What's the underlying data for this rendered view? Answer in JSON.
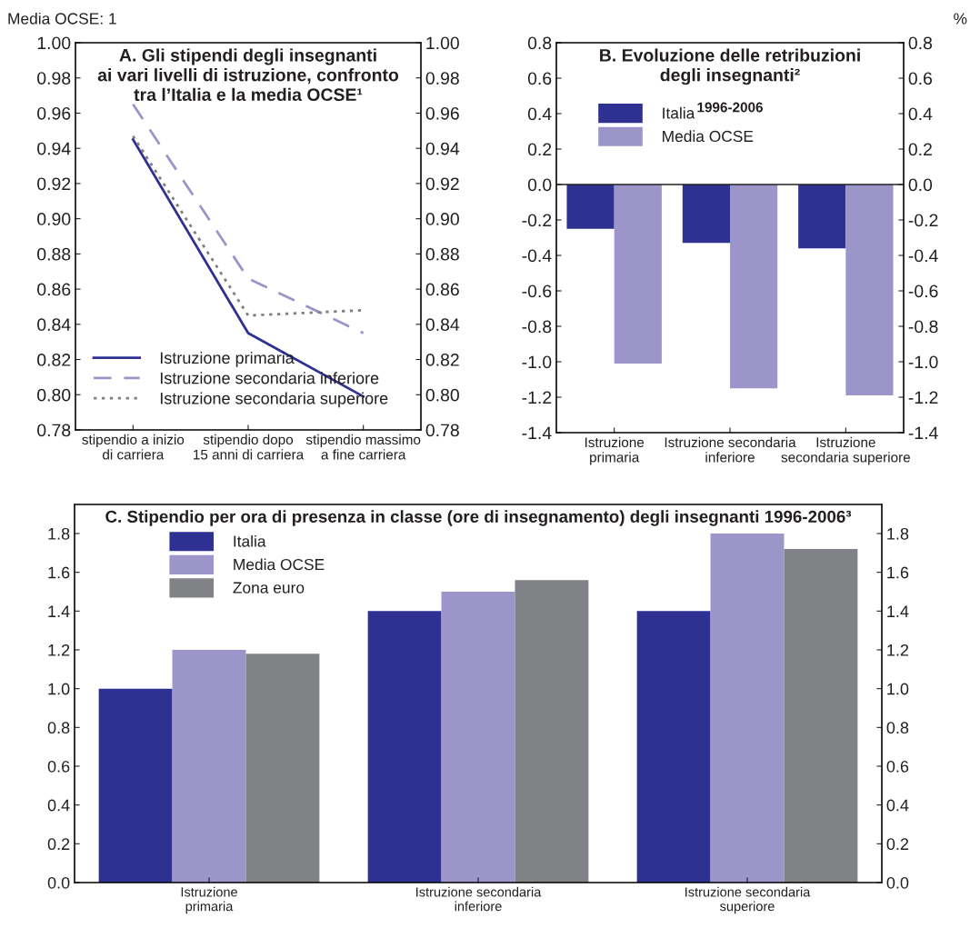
{
  "chart_data": [
    {
      "type": "line",
      "title": "A. Gli stipendi degli insegnanti\nai vari livelli di istruzione, confronto\ntra l’Italia e la media OCSE¹",
      "categories": [
        "stipendio a inizio\ndi carriera",
        "stipendio dopo\n15 anni di carriera",
        "stipendio massimo\na fine carriera"
      ],
      "series": [
        {
          "name": "Istruzione primaria",
          "color": "#2e3192",
          "line_style": "solid",
          "values": [
            0.945,
            0.835,
            0.799
          ]
        },
        {
          "name": "Istruzione secondaria inferiore",
          "color": "#9b95c9",
          "line_style": "dashed",
          "values": [
            0.965,
            0.866,
            0.835
          ]
        },
        {
          "name": "Istruzione secondaria superiore",
          "color": "#808080",
          "line_style": "dotted",
          "values": [
            0.947,
            0.845,
            0.848
          ]
        }
      ],
      "ylim": [
        0.78,
        1.0
      ],
      "yticks": [
        {
          "value": 0.78,
          "label": "0.78"
        },
        {
          "value": 0.8,
          "label": "0.80"
        },
        {
          "value": 0.82,
          "label": "0.82"
        },
        {
          "value": 0.84,
          "label": "0.84"
        },
        {
          "value": 0.86,
          "label": "0.86"
        },
        {
          "value": 0.88,
          "label": "0.88"
        },
        {
          "value": 0.9,
          "label": "0.90"
        },
        {
          "value": 0.92,
          "label": "0.92"
        },
        {
          "value": 0.94,
          "label": "0.94"
        },
        {
          "value": 0.96,
          "label": "0.96"
        },
        {
          "value": 0.98,
          "label": "0.98"
        },
        {
          "value": 1.0,
          "label": "1.00"
        }
      ],
      "y2lim": [
        0.78,
        1.0
      ],
      "y2ticks": [
        {
          "value": 0.78,
          "label": "0.78"
        },
        {
          "value": 0.8,
          "label": "0.80"
        },
        {
          "value": 0.82,
          "label": "0.82"
        },
        {
          "value": 0.84,
          "label": "0.84"
        },
        {
          "value": 0.86,
          "label": "0.86"
        },
        {
          "value": 0.88,
          "label": "0.88"
        },
        {
          "value": 0.9,
          "label": "0.90"
        },
        {
          "value": 0.92,
          "label": "0.92"
        },
        {
          "value": 0.94,
          "label": "0.94"
        },
        {
          "value": 0.96,
          "label": "0.96"
        },
        {
          "value": 0.98,
          "label": "0.98"
        },
        {
          "value": 1.0,
          "label": "1.00"
        }
      ],
      "legend": "bottom left",
      "grid": false,
      "marker": "none",
      "annotations": [
        "Media OCSE: 1"
      ]
    },
    {
      "type": "bar",
      "title": "B. Evoluzione delle retribuzioni\ndegli insegnanti²",
      "subtitle": "1996-2006",
      "categories": [
        "Istruzione\nprimaria",
        "Istruzione secondaria\ninferiore",
        "Istruzione\nsecondaria superiore"
      ],
      "series": [
        {
          "name": "Italia",
          "color": "#2e3192",
          "values": [
            -0.25,
            -0.33,
            -0.36
          ]
        },
        {
          "name": "Media OCSE",
          "color": "#9b95c9",
          "values": [
            -1.01,
            -1.15,
            -1.19
          ]
        }
      ],
      "ylim": [
        -1.4,
        0.8
      ],
      "yticks": [
        {
          "value": -1.4,
          "label": "-1.4"
        },
        {
          "value": -1.2,
          "label": "-1.2"
        },
        {
          "value": -1.0,
          "label": "-1.0"
        },
        {
          "value": -0.8,
          "label": "-0.8"
        },
        {
          "value": -0.6,
          "label": "-0.6"
        },
        {
          "value": -0.4,
          "label": "-0.4"
        },
        {
          "value": -0.2,
          "label": "-0.2"
        },
        {
          "value": 0,
          "label": "0.0"
        },
        {
          "value": 0.2,
          "label": "0.2"
        },
        {
          "value": 0.4,
          "label": "0.4"
        },
        {
          "value": 0.6,
          "label": "0.6"
        },
        {
          "value": 0.8,
          "label": "0.8"
        }
      ],
      "y2lim": [
        -1.4,
        0.8
      ],
      "y2ticks": [
        {
          "value": -1.4,
          "label": "-1.4"
        },
        {
          "value": -1.2,
          "label": "-1.2"
        },
        {
          "value": -1.0,
          "label": "-1.0"
        },
        {
          "value": -0.8,
          "label": "-0.8"
        },
        {
          "value": -0.6,
          "label": "-0.6"
        },
        {
          "value": -0.4,
          "label": "-0.4"
        },
        {
          "value": -0.2,
          "label": "-0.2"
        },
        {
          "value": 0,
          "label": "0.0"
        },
        {
          "value": 0.2,
          "label": "0.2"
        },
        {
          "value": 0.4,
          "label": "0.4"
        },
        {
          "value": 0.6,
          "label": "0.6"
        },
        {
          "value": 0.8,
          "label": "0.8"
        }
      ],
      "ref_lines": [
        {
          "axis": "y",
          "value": 0,
          "color": "#231f20"
        }
      ],
      "legend": "top left",
      "grid": false,
      "annotations": [
        "%"
      ]
    },
    {
      "type": "bar",
      "title": "C. Stipendio per ora di presenza in classe (ore di insegnamento) degli insegnanti 1996-2006³",
      "categories": [
        "Istruzione\nprimaria",
        "Istruzione secondaria\ninferiore",
        "Istruzione secondaria\nsuperiore"
      ],
      "series": [
        {
          "name": "Italia",
          "color": "#2e3192",
          "values": [
            1.0,
            1.4,
            1.4
          ]
        },
        {
          "name": "Media OCSE",
          "color": "#9b95c9",
          "values": [
            1.2,
            1.5,
            1.8
          ]
        },
        {
          "name": "Zona euro",
          "color": "#808285",
          "values": [
            1.18,
            1.56,
            1.72
          ]
        }
      ],
      "ylim": [
        0,
        1.95
      ],
      "yticks": [
        {
          "value": 0,
          "label": "0.0"
        },
        {
          "value": 0.2,
          "label": "0.2"
        },
        {
          "value": 0.4,
          "label": "0.4"
        },
        {
          "value": 0.6,
          "label": "0.6"
        },
        {
          "value": 0.8,
          "label": "0.8"
        },
        {
          "value": 1.0,
          "label": "1.0"
        },
        {
          "value": 1.2,
          "label": "1.2"
        },
        {
          "value": 1.4,
          "label": "1.4"
        },
        {
          "value": 1.6,
          "label": "1.6"
        },
        {
          "value": 1.8,
          "label": "1.8"
        }
      ],
      "y2lim": [
        0,
        1.95
      ],
      "y2ticks": [
        {
          "value": 0,
          "label": "0.0"
        },
        {
          "value": 0.2,
          "label": "0.2"
        },
        {
          "value": 0.4,
          "label": "0.4"
        },
        {
          "value": 0.6,
          "label": "0.6"
        },
        {
          "value": 0.8,
          "label": "0.8"
        },
        {
          "value": 1.0,
          "label": "1.0"
        },
        {
          "value": 1.2,
          "label": "1.2"
        },
        {
          "value": 1.4,
          "label": "1.4"
        },
        {
          "value": 1.6,
          "label": "1.6"
        },
        {
          "value": 1.8,
          "label": "1.8"
        }
      ],
      "legend": "top left",
      "grid": false
    }
  ]
}
